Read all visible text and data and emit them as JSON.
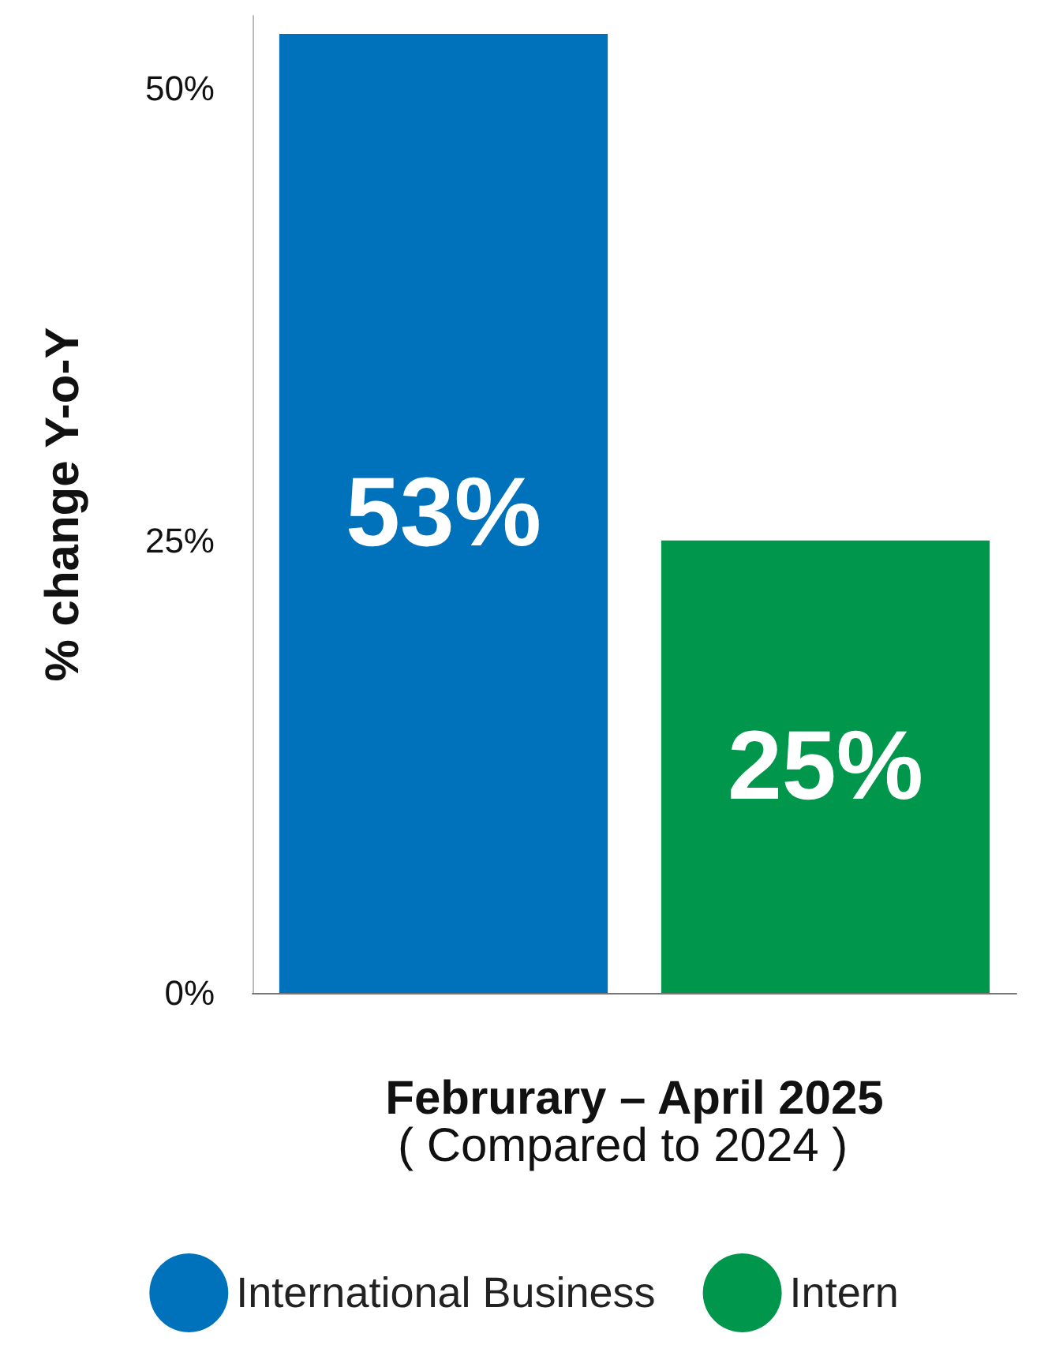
{
  "chart_data": {
    "type": "bar",
    "categories": [
      null,
      null
    ],
    "xlabel": "Februrary – April 2025",
    "annotations": [
      "( Compared to 2024 )"
    ],
    "ylabel": "% change Y-o-Y",
    "series": [
      {
        "name": "International Business",
        "color": "#0072bc",
        "values": [
          53,
          null
        ],
        "value_labels": [
          "53%",
          null
        ]
      },
      {
        "name": "Intern",
        "color": "#00964b",
        "values": [
          null,
          25
        ],
        "value_labels": [
          null,
          "25%"
        ]
      }
    ],
    "ylim": [
      0,
      54
    ],
    "yticks": [
      {
        "value": 0,
        "label": "0%"
      },
      {
        "value": 25,
        "label": "25%"
      },
      {
        "value": 50,
        "label": "50%"
      }
    ],
    "grid": false,
    "legend": "bottom"
  }
}
